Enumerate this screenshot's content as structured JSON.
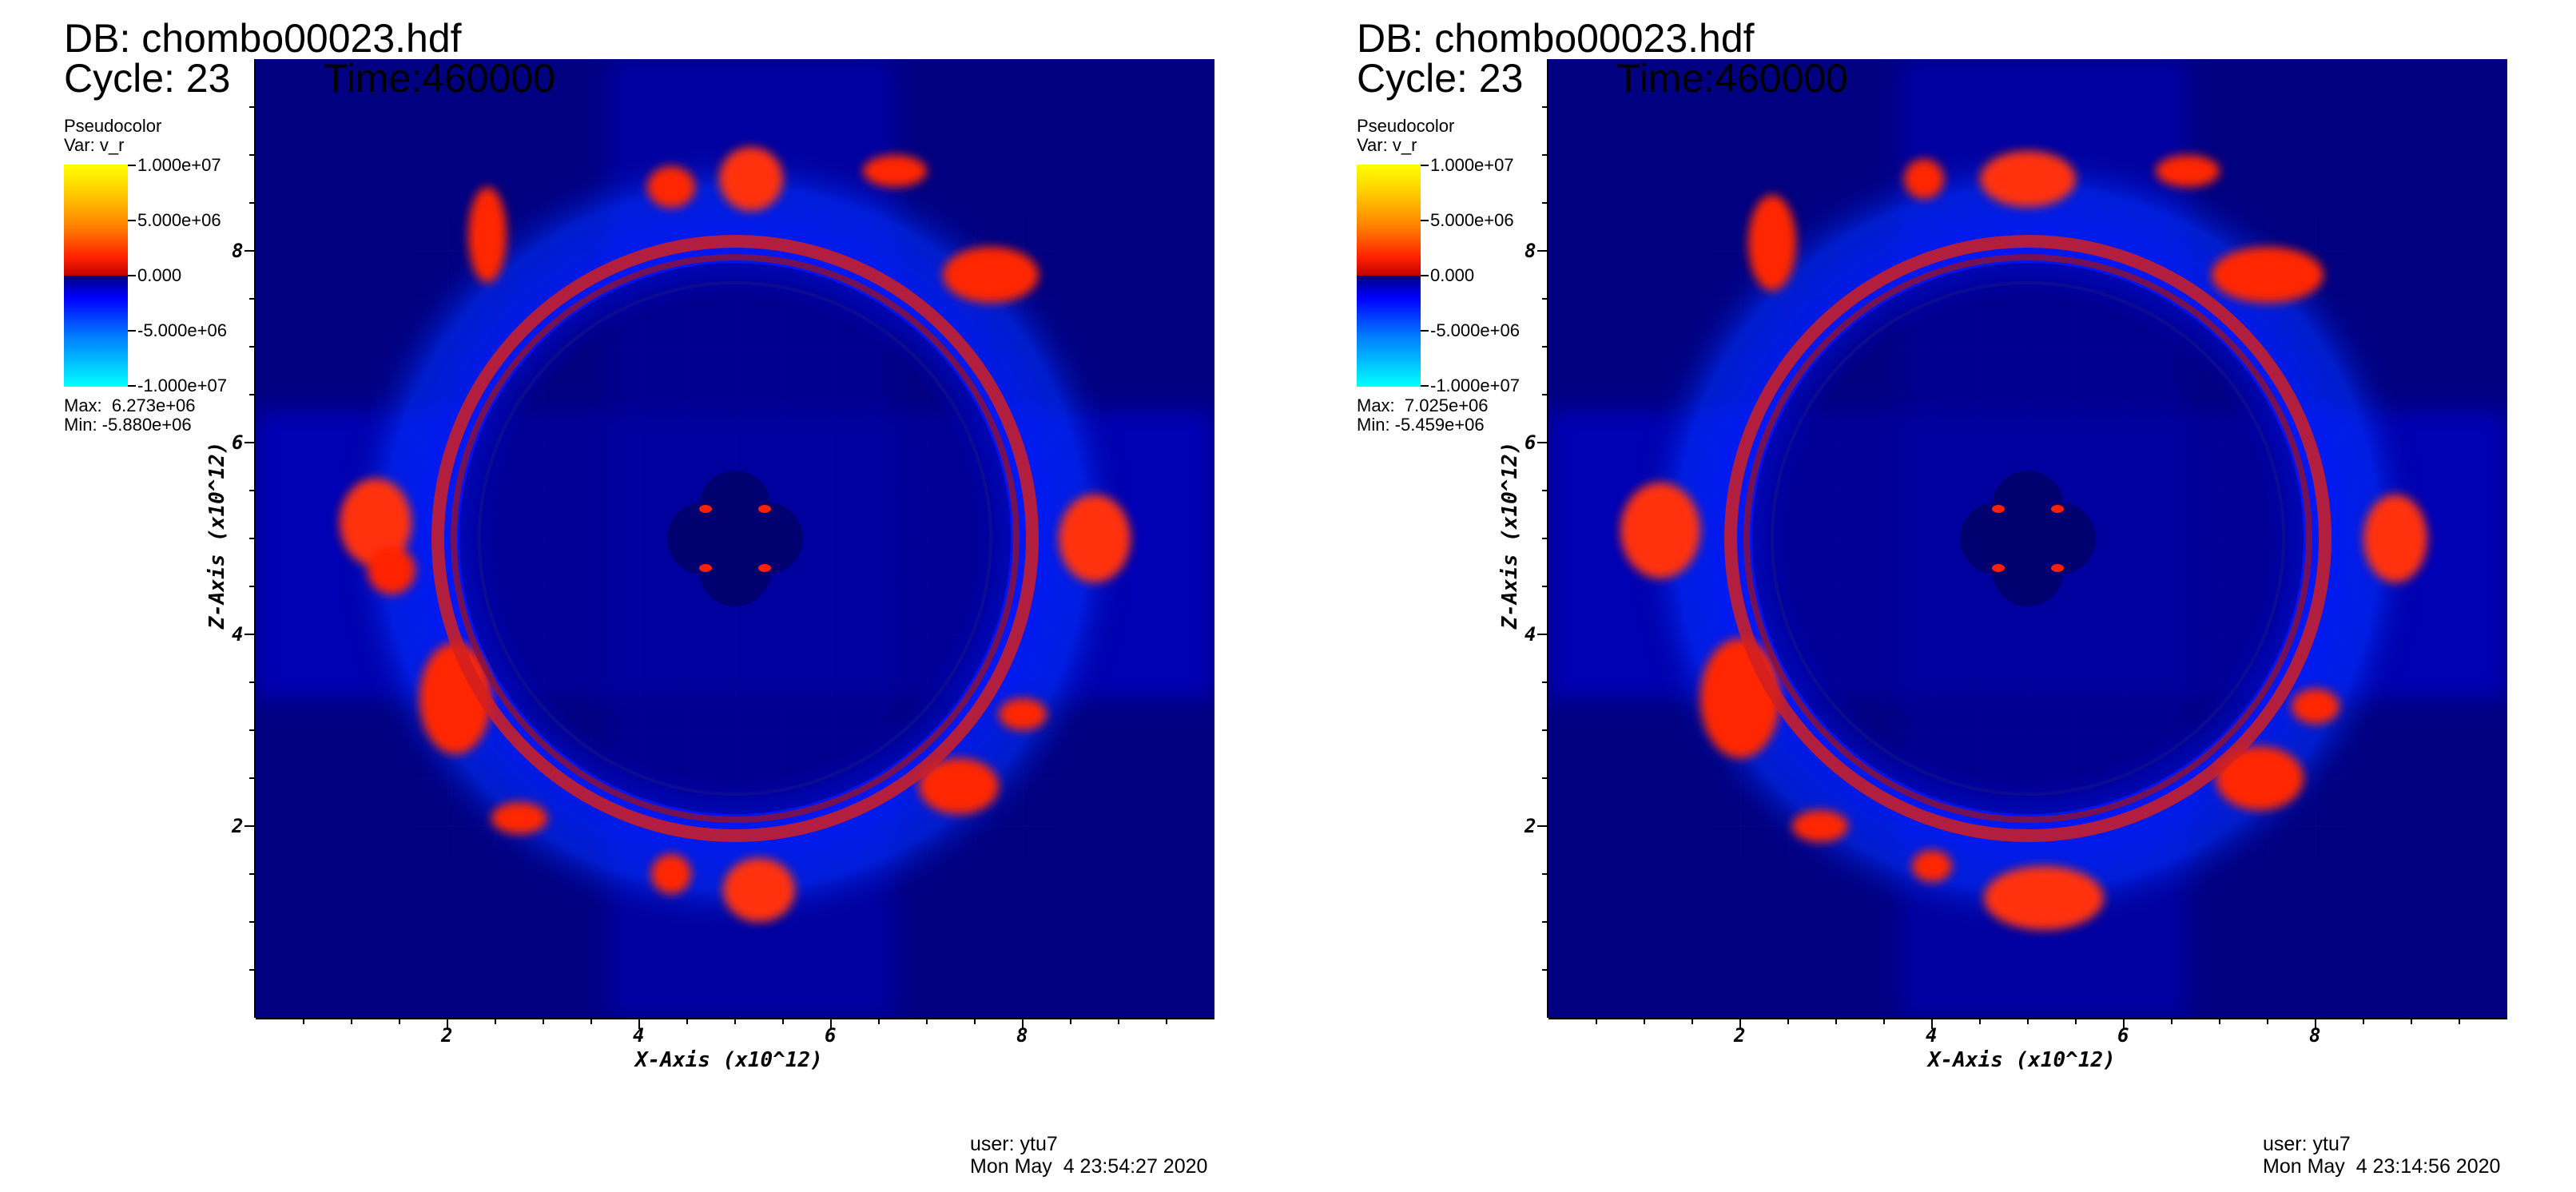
{
  "panels": [
    {
      "db_title": "DB: chombo00023.hdf",
      "cycle_label": "Cycle: 23",
      "time_label": "Time:460000",
      "legend_type": "Pseudocolor",
      "legend_var": "Var: v_r",
      "colorbar_labels": [
        "1.000e+07",
        "5.000e+06",
        "0.000",
        "-5.000e+06",
        "-1.000e+07"
      ],
      "max_label": "Max:  6.273e+06",
      "min_label": "Min: -5.880e+06",
      "user_label": "user: ytu7",
      "date_label": "Mon May  4 23:54:27 2020"
    },
    {
      "db_title": "DB: chombo00023.hdf",
      "cycle_label": "Cycle: 23",
      "time_label": "Time:460000",
      "legend_type": "Pseudocolor",
      "legend_var": "Var: v_r",
      "colorbar_labels": [
        "1.000e+07",
        "5.000e+06",
        "0.000",
        "-5.000e+06",
        "-1.000e+07"
      ],
      "max_label": "Max:  7.025e+06",
      "min_label": "Min: -5.459e+06",
      "user_label": "user: ytu7",
      "date_label": "Mon May  4 23:14:56 2020"
    }
  ],
  "chart_data": [
    {
      "type": "heatmap",
      "variable": "v_r",
      "xlabel": "X-Axis (x10^12)",
      "ylabel": "Z-Axis (x10^12)",
      "xlim": [
        0,
        10
      ],
      "ylim": [
        0,
        10
      ],
      "xticks": [
        "2",
        "4",
        "6",
        "8"
      ],
      "yticks": [
        "2",
        "4",
        "6",
        "8"
      ],
      "colorbar_range": [
        -10000000,
        10000000
      ],
      "max": 6273000,
      "min": -5880000,
      "colormap": [
        "#00ffff",
        "#0000ff",
        "#000080",
        "#c00000",
        "#ff2000",
        "#ffd000",
        "#ffff00"
      ],
      "background_color": "#000080"
    },
    {
      "type": "heatmap",
      "variable": "v_r",
      "xlabel": "X-Axis (x10^12)",
      "ylabel": "Z-Axis (x10^12)",
      "xlim": [
        0,
        10
      ],
      "ylim": [
        0,
        10
      ],
      "xticks": [
        "2",
        "4",
        "6",
        "8"
      ],
      "yticks": [
        "2",
        "4",
        "6",
        "8"
      ],
      "colorbar_range": [
        -10000000,
        10000000
      ],
      "max": 7025000,
      "min": -5459000,
      "colormap": [
        "#00ffff",
        "#0000ff",
        "#000080",
        "#c00000",
        "#ff2000",
        "#ffd000",
        "#ffff00"
      ],
      "background_color": "#000080"
    }
  ]
}
